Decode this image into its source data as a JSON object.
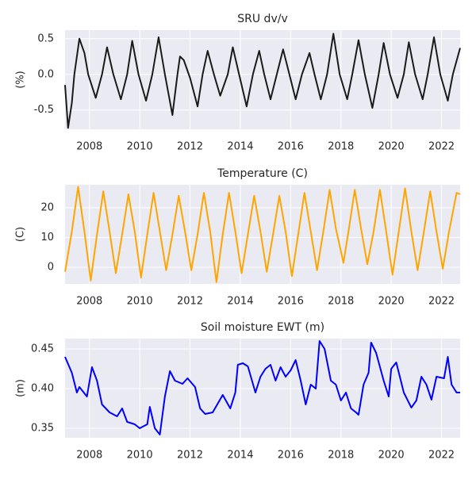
{
  "chart_data": [
    {
      "type": "line",
      "title": "SRU dv/v",
      "ylabel": "(%)",
      "color": "#1a1a1a",
      "grid": true,
      "xlim": [
        2007.03,
        2022.74
      ],
      "xticks": [
        2008,
        2010,
        2012,
        2014,
        2016,
        2018,
        2020,
        2022
      ],
      "ylim": [
        -0.77,
        0.62
      ],
      "yticks": [
        -0.5,
        {
          "value": 0,
          "label": "0.0"
        },
        0.5
      ],
      "x": [
        2007.03,
        2007.15,
        2007.3,
        2007.4,
        2007.6,
        2007.8,
        2007.95,
        2008.25,
        2008.5,
        2008.7,
        2008.95,
        2009.25,
        2009.5,
        2009.7,
        2009.95,
        2010.25,
        2010.5,
        2010.75,
        2011.0,
        2011.3,
        2011.5,
        2011.6,
        2011.75,
        2012.0,
        2012.3,
        2012.5,
        2012.7,
        2012.95,
        2013.2,
        2013.5,
        2013.7,
        2013.95,
        2014.25,
        2014.5,
        2014.75,
        2014.95,
        2015.2,
        2015.45,
        2015.7,
        2015.95,
        2016.2,
        2016.45,
        2016.75,
        2016.95,
        2017.2,
        2017.45,
        2017.7,
        2017.95,
        2018.25,
        2018.45,
        2018.7,
        2018.95,
        2019.25,
        2019.5,
        2019.7,
        2019.95,
        2020.25,
        2020.5,
        2020.7,
        2020.95,
        2021.25,
        2021.45,
        2021.7,
        2021.95,
        2022.25,
        2022.45,
        2022.74
      ],
      "values": [
        -0.15,
        -0.75,
        -0.4,
        0,
        0.5,
        0.3,
        0,
        -0.33,
        0,
        0.38,
        0,
        -0.35,
        0,
        0.47,
        0,
        -0.37,
        0,
        0.52,
        0,
        -0.57,
        0,
        0.25,
        0.2,
        -0.05,
        -0.45,
        0,
        0.33,
        0,
        -0.3,
        0,
        0.38,
        0,
        -0.45,
        0,
        0.33,
        0,
        -0.35,
        0,
        0.35,
        0,
        -0.35,
        0,
        0.3,
        0,
        -0.35,
        0,
        0.57,
        0,
        -0.35,
        0,
        0.48,
        0,
        -0.47,
        0,
        0.44,
        0,
        -0.33,
        0,
        0.45,
        0,
        -0.35,
        0,
        0.52,
        0,
        -0.37,
        0,
        0.37
      ]
    },
    {
      "type": "line",
      "title": "Temperature (C)",
      "ylabel": "(C)",
      "color": "#ffa500",
      "grid": true,
      "xlim": [
        2007.03,
        2022.74
      ],
      "xticks": [
        2008,
        2010,
        2012,
        2014,
        2016,
        2018,
        2020,
        2022
      ],
      "ylim": [
        -5.6,
        27.7
      ],
      "yticks": [
        0,
        10,
        20
      ],
      "x": [
        2007.03,
        2007.3,
        2007.55,
        2007.8,
        2008.05,
        2008.3,
        2008.55,
        2008.8,
        2009.05,
        2009.3,
        2009.55,
        2009.8,
        2010.05,
        2010.3,
        2010.55,
        2010.8,
        2011.05,
        2011.3,
        2011.55,
        2011.8,
        2012.05,
        2012.3,
        2012.55,
        2012.8,
        2013.05,
        2013.3,
        2013.55,
        2013.8,
        2014.05,
        2014.3,
        2014.55,
        2014.8,
        2015.05,
        2015.3,
        2015.55,
        2015.8,
        2016.05,
        2016.3,
        2016.55,
        2016.8,
        2017.05,
        2017.3,
        2017.55,
        2017.8,
        2018.1,
        2018.3,
        2018.55,
        2018.8,
        2019.05,
        2019.3,
        2019.55,
        2019.8,
        2020.05,
        2020.3,
        2020.55,
        2020.8,
        2021.05,
        2021.3,
        2021.55,
        2021.8,
        2022.05,
        2022.3,
        2022.6,
        2022.74
      ],
      "values": [
        -1.5,
        12,
        27,
        12,
        -4.5,
        11,
        25.5,
        12,
        -2,
        11,
        24.5,
        12,
        -3.5,
        11,
        25,
        12,
        -1,
        11,
        24,
        12,
        -1,
        11,
        25,
        12,
        -5,
        11,
        25,
        12,
        -2,
        11,
        24,
        12,
        -1.5,
        11,
        24,
        12,
        -3,
        11,
        25,
        12,
        -1,
        12,
        26,
        13,
        1.5,
        12,
        26,
        13,
        1,
        12,
        26,
        12,
        -2.5,
        12,
        26.5,
        12,
        -1,
        12,
        25.5,
        12,
        -0.5,
        12,
        25,
        24.5
      ]
    },
    {
      "type": "line",
      "title": "Soil moisture EWT (m)",
      "ylabel": "(m)",
      "color": "#0000ff",
      "grid": true,
      "xlim": [
        2007.03,
        2022.74
      ],
      "xticks": [
        2008,
        2010,
        2012,
        2014,
        2016,
        2018,
        2020,
        2022
      ],
      "ylim": [
        0.338,
        0.463
      ],
      "yticks": [
        0.35,
        {
          "value": 0.4,
          "label": "0.40"
        },
        0.45
      ],
      "x": [
        2007.03,
        2007.3,
        2007.5,
        2007.6,
        2007.9,
        2008.1,
        2008.3,
        2008.5,
        2008.8,
        2009.1,
        2009.3,
        2009.5,
        2009.8,
        2010.0,
        2010.3,
        2010.4,
        2010.6,
        2010.8,
        2011.0,
        2011.2,
        2011.4,
        2011.7,
        2011.9,
        2012.2,
        2012.4,
        2012.6,
        2012.9,
        2013.3,
        2013.6,
        2013.8,
        2013.9,
        2014.1,
        2014.3,
        2014.6,
        2014.8,
        2015.0,
        2015.2,
        2015.4,
        2015.6,
        2015.8,
        2016.0,
        2016.2,
        2016.4,
        2016.6,
        2016.8,
        2017.0,
        2017.15,
        2017.35,
        2017.6,
        2017.8,
        2018.0,
        2018.2,
        2018.4,
        2018.6,
        2018.7,
        2018.9,
        2019.1,
        2019.2,
        2019.4,
        2019.7,
        2019.9,
        2020.0,
        2020.2,
        2020.5,
        2020.8,
        2021.0,
        2021.2,
        2021.4,
        2021.6,
        2021.8,
        2022.1,
        2022.25,
        2022.4,
        2022.6,
        2022.74
      ],
      "values": [
        0.44,
        0.42,
        0.395,
        0.402,
        0.39,
        0.427,
        0.41,
        0.38,
        0.37,
        0.365,
        0.375,
        0.358,
        0.355,
        0.35,
        0.355,
        0.377,
        0.35,
        0.342,
        0.39,
        0.422,
        0.41,
        0.406,
        0.413,
        0.402,
        0.375,
        0.368,
        0.37,
        0.392,
        0.375,
        0.395,
        0.43,
        0.432,
        0.428,
        0.395,
        0.415,
        0.425,
        0.43,
        0.41,
        0.427,
        0.415,
        0.423,
        0.436,
        0.41,
        0.38,
        0.405,
        0.4,
        0.46,
        0.45,
        0.41,
        0.405,
        0.385,
        0.395,
        0.375,
        0.37,
        0.367,
        0.405,
        0.42,
        0.458,
        0.445,
        0.41,
        0.39,
        0.425,
        0.433,
        0.395,
        0.376,
        0.385,
        0.415,
        0.405,
        0.386,
        0.415,
        0.413,
        0.44,
        0.405,
        0.395,
        0.395
      ]
    }
  ]
}
